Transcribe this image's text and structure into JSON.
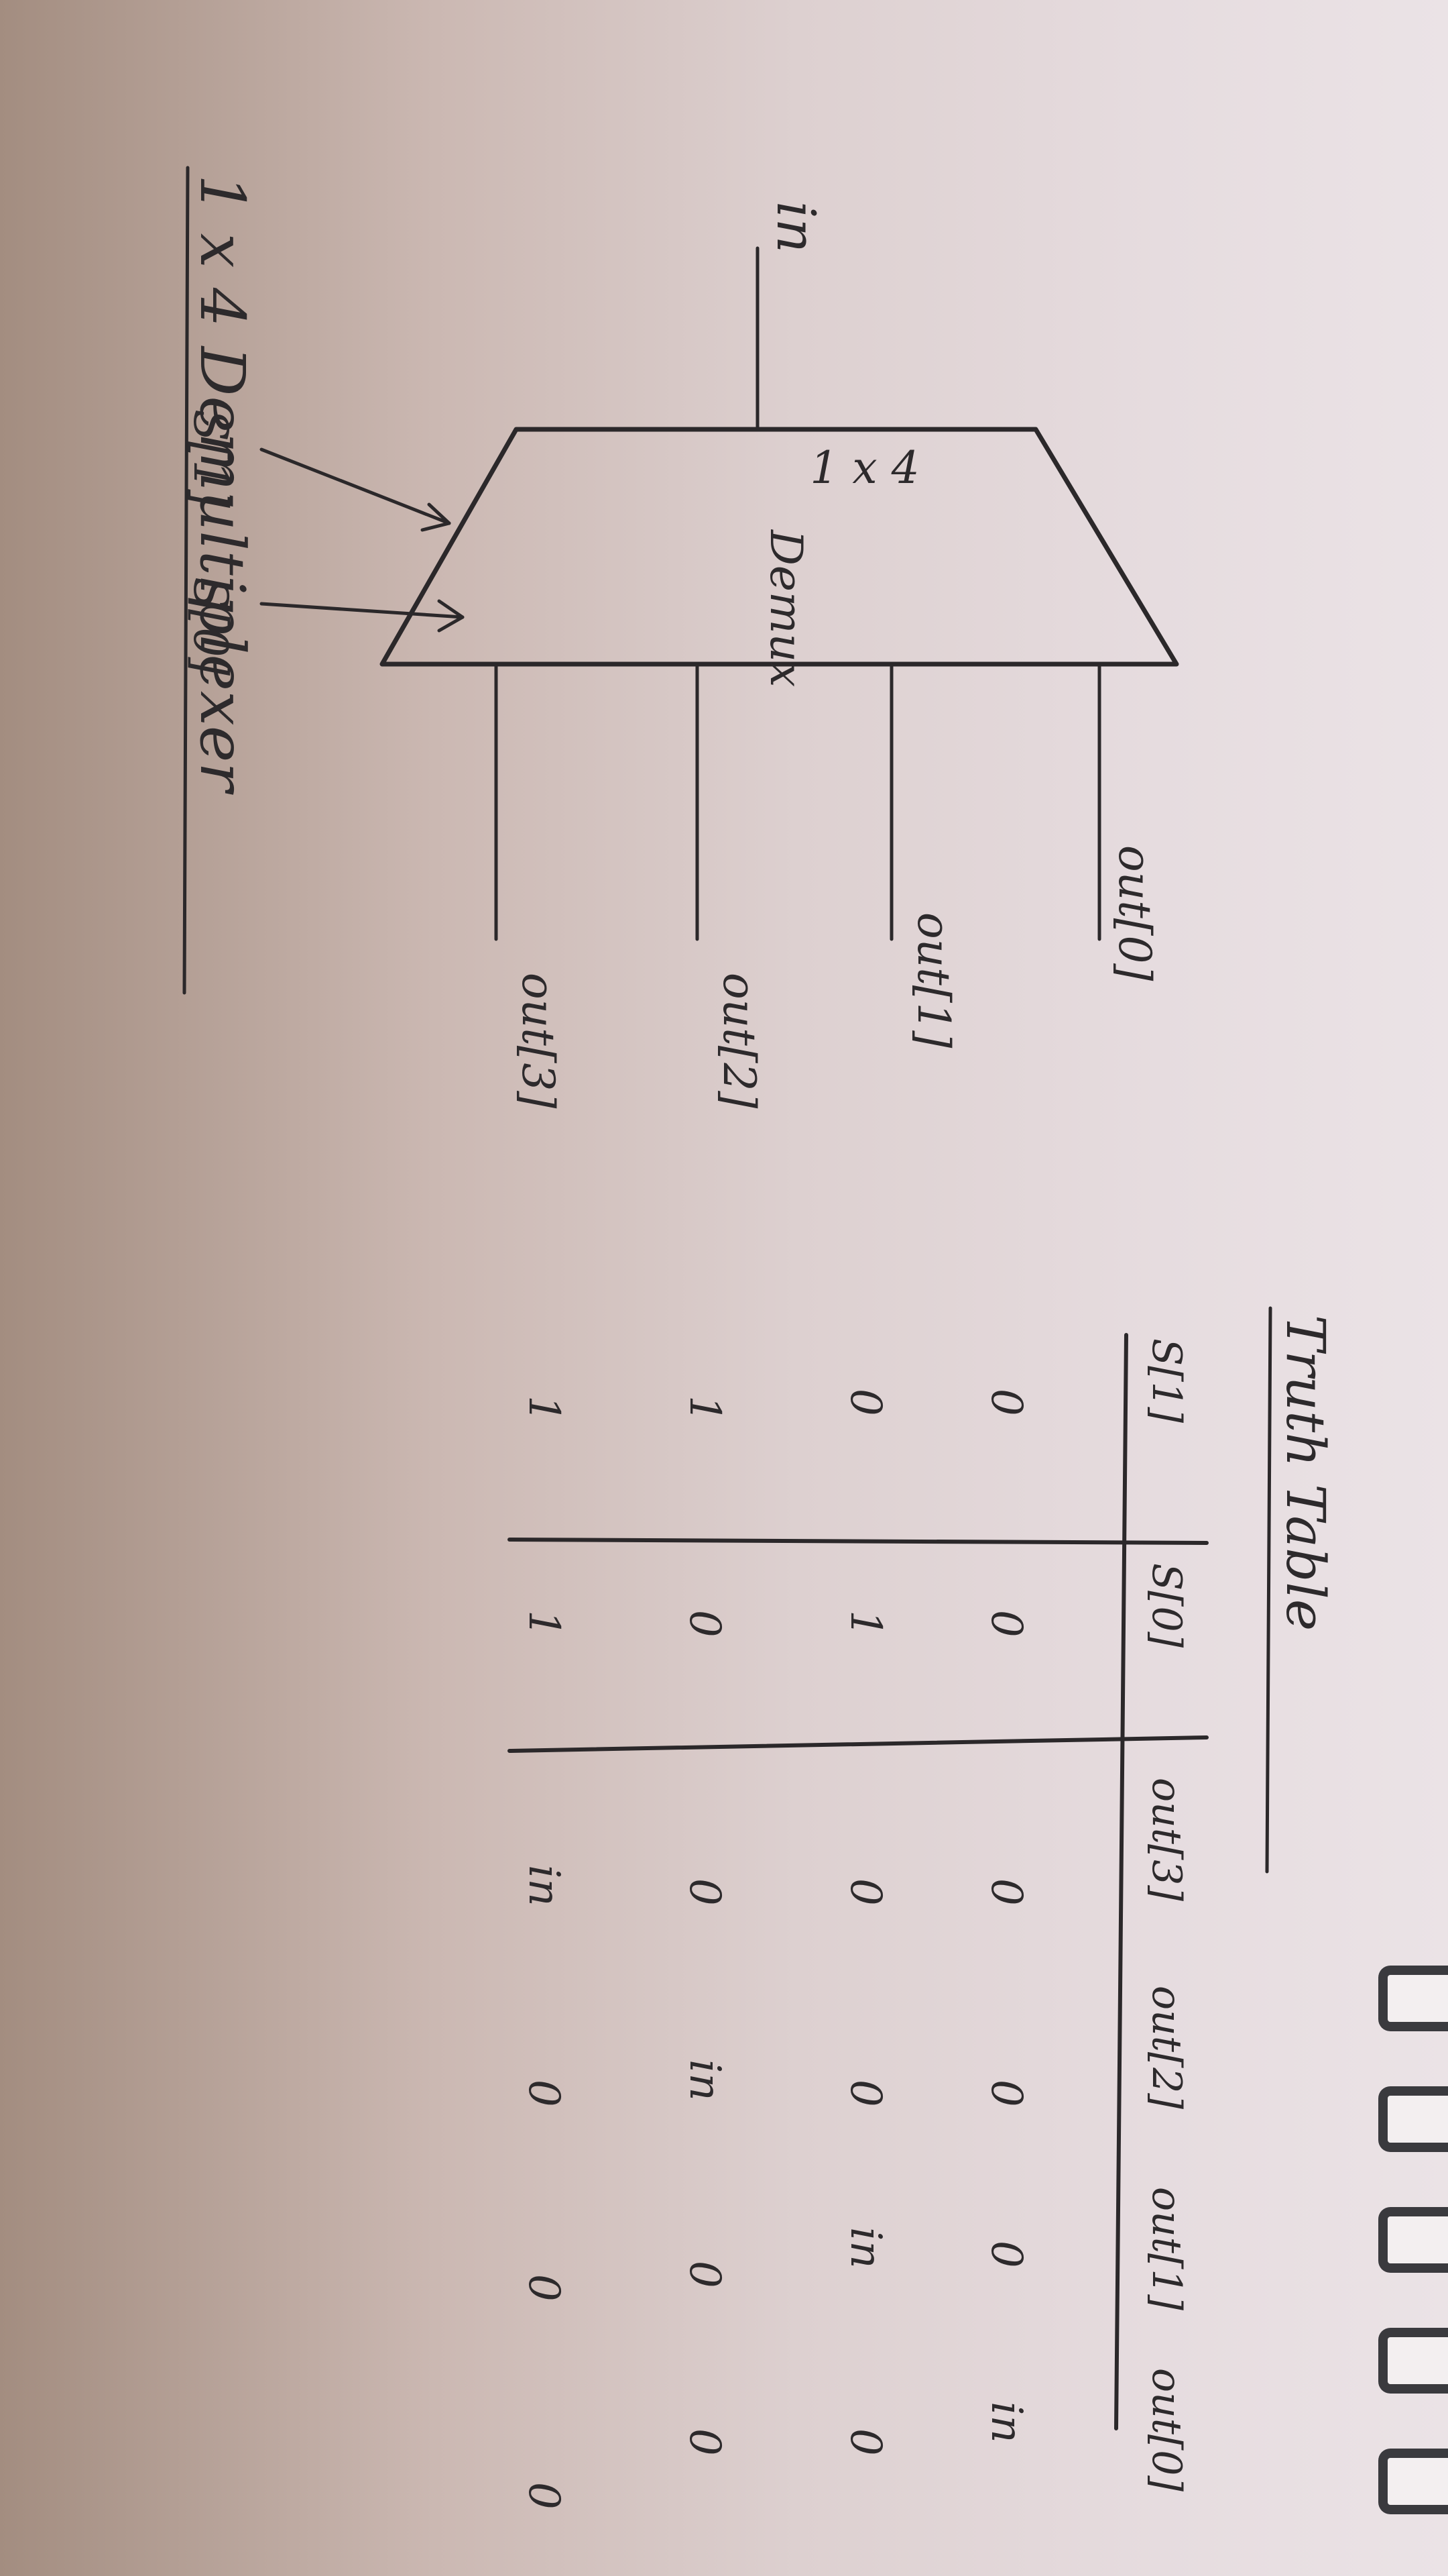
{
  "diagram": {
    "title": "1 x 4 Demultiplexer",
    "block_label_line1": "1 x 4",
    "block_label_line2": "Demux",
    "input_label": "in",
    "select_labels": [
      "S[1]",
      "S[0]"
    ],
    "output_labels": [
      "out[0]",
      "out[1]",
      "out[2]",
      "out[3]"
    ]
  },
  "truth_table": {
    "title": "Truth Table",
    "headers": [
      "S[1]",
      "S[0]",
      "out[3]",
      "out[2]",
      "out[1]",
      "out[0]"
    ],
    "rows": [
      [
        "0",
        "0",
        "0",
        "0",
        "0",
        "in"
      ],
      [
        "0",
        "1",
        "0",
        "0",
        "in",
        "0"
      ],
      [
        "1",
        "0",
        "0",
        "in",
        "0",
        "0"
      ],
      [
        "1",
        "1",
        "in",
        "0",
        "0",
        "0"
      ]
    ]
  }
}
